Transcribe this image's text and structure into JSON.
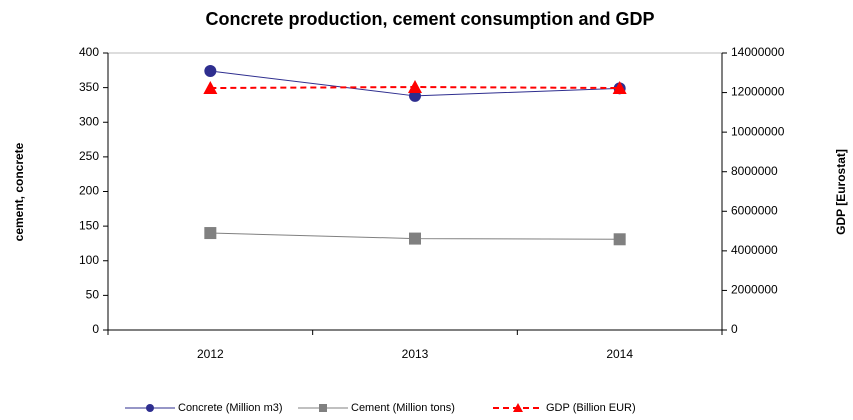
{
  "chart_data": {
    "type": "line",
    "title": "Concrete production, cement consumption and GDP",
    "y_label": "cement, concrete",
    "y2_label": "GDP [Eurostat]",
    "categories": [
      "2012",
      "2013",
      "2014"
    ],
    "series": [
      {
        "name": "Concrete (Million m3)",
        "color": "#2e2e8f",
        "marker": "circle",
        "dashed": false,
        "values": [
          374,
          338,
          349
        ]
      },
      {
        "name": "Cement (Million tons)",
        "color": "#808080",
        "marker": "square",
        "dashed": false,
        "values": [
          140,
          132,
          131
        ]
      },
      {
        "name": "GDP (Billion EUR)",
        "color": "#ff0000",
        "marker": "triangle",
        "dashed": true,
        "axis": "y2",
        "values": [
          12230000,
          12280000,
          12230000
        ]
      }
    ],
    "ylim": [
      0,
      400
    ],
    "yticks": [
      0,
      50,
      100,
      150,
      200,
      250,
      300,
      350,
      400
    ],
    "y2lim": [
      0,
      14000000
    ],
    "y2ticks": [
      0,
      2000000,
      4000000,
      6000000,
      8000000,
      10000000,
      12000000,
      14000000
    ],
    "grid": false,
    "legend": "bottom"
  }
}
